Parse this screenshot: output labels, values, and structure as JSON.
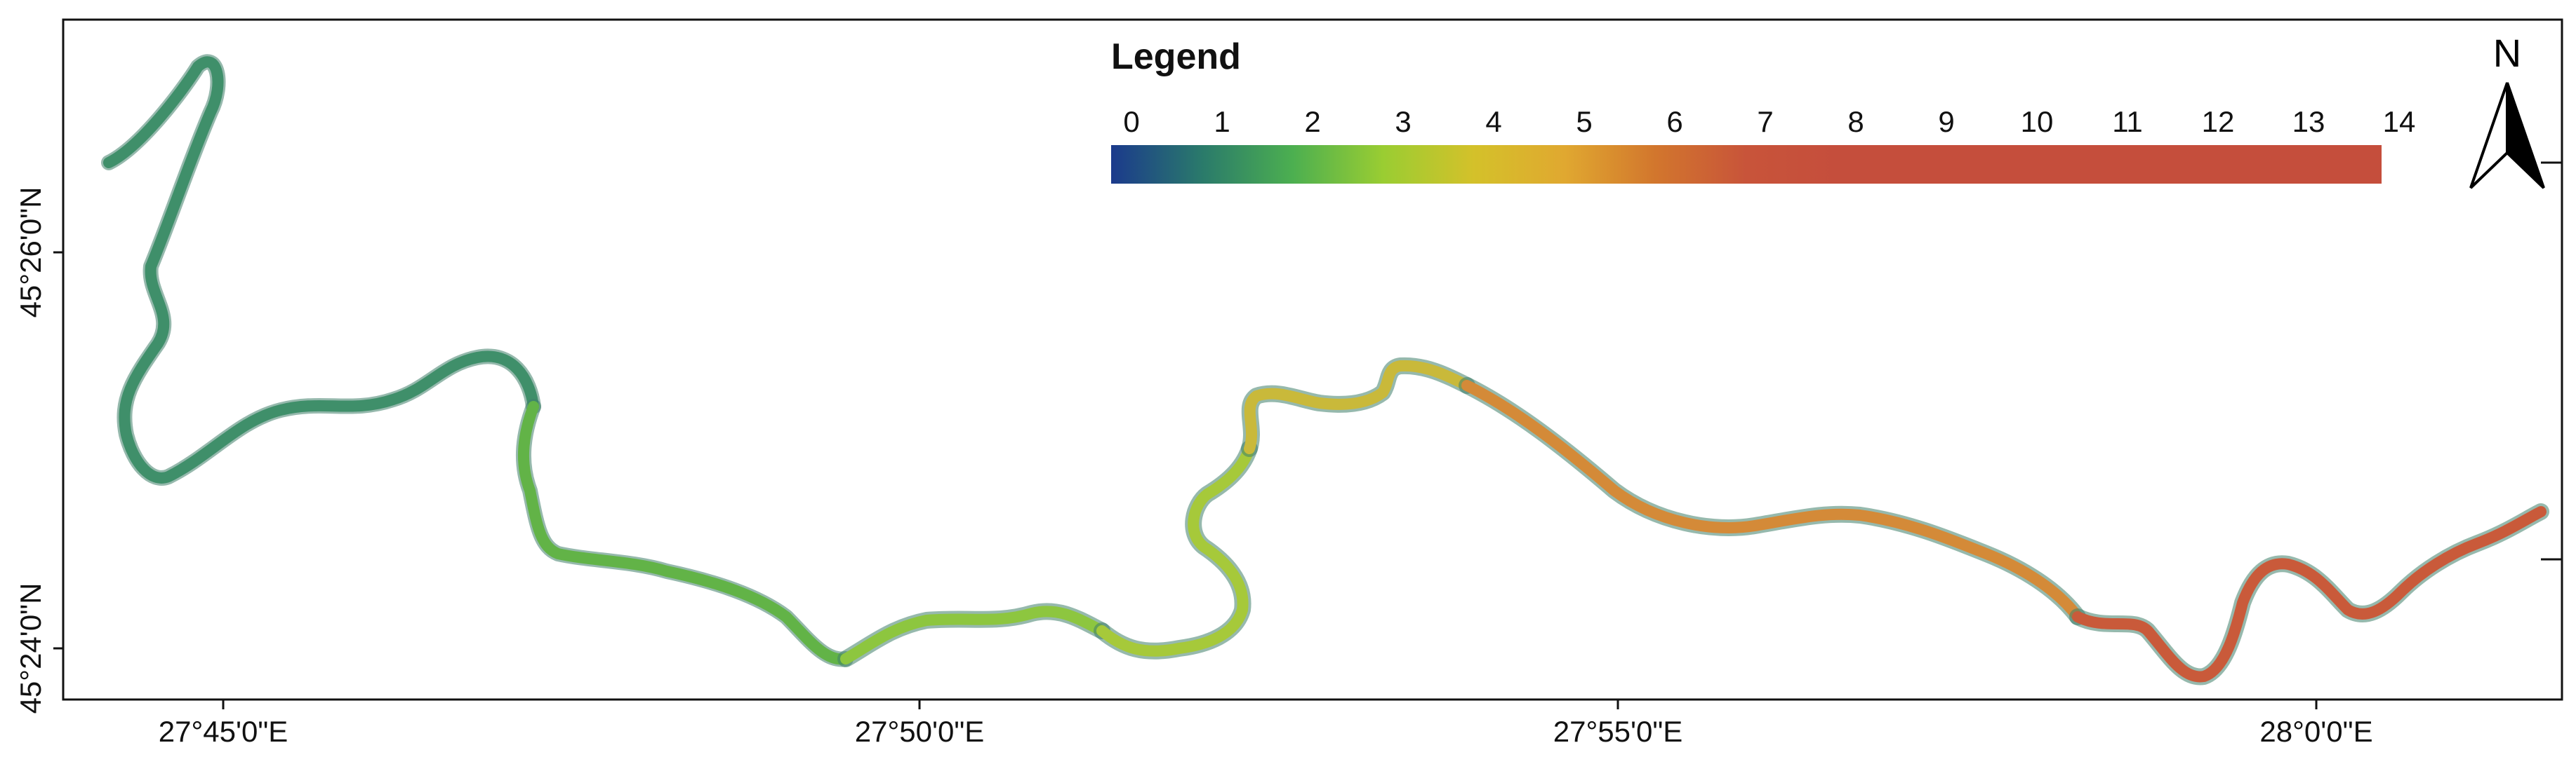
{
  "map": {
    "legend": {
      "title": "Legend",
      "labels": [
        "0",
        "1",
        "2",
        "3",
        "4",
        "5",
        "6",
        "7",
        "8",
        "9",
        "10",
        "11",
        "12",
        "13",
        "14"
      ],
      "colors": [
        "#1b3a8c",
        "#2a7a6b",
        "#4caf50",
        "#9acd32",
        "#d4c12a",
        "#e0a830",
        "#d2762d",
        "#c8543a",
        "#c54e3c",
        "#c54e3c",
        "#c54e3c",
        "#c54e3c",
        "#c54e3c",
        "#c54e3c",
        "#c54e3c"
      ]
    },
    "north_label": "N",
    "x_ticks": [
      "27°45'0\"E",
      "27°50'0\"E",
      "27°55'0\"E",
      "28°0'0\"E"
    ],
    "y_ticks": [
      "45°26'0\"N",
      "45°24'0\"N"
    ],
    "river_segments": [
      {
        "color": "#3f8f6a"
      },
      {
        "color": "#62b347"
      },
      {
        "color": "#8dc63f"
      },
      {
        "color": "#a6c93a"
      },
      {
        "color": "#c9b93a"
      },
      {
        "color": "#d48a38"
      },
      {
        "color": "#c95a3a"
      }
    ]
  }
}
